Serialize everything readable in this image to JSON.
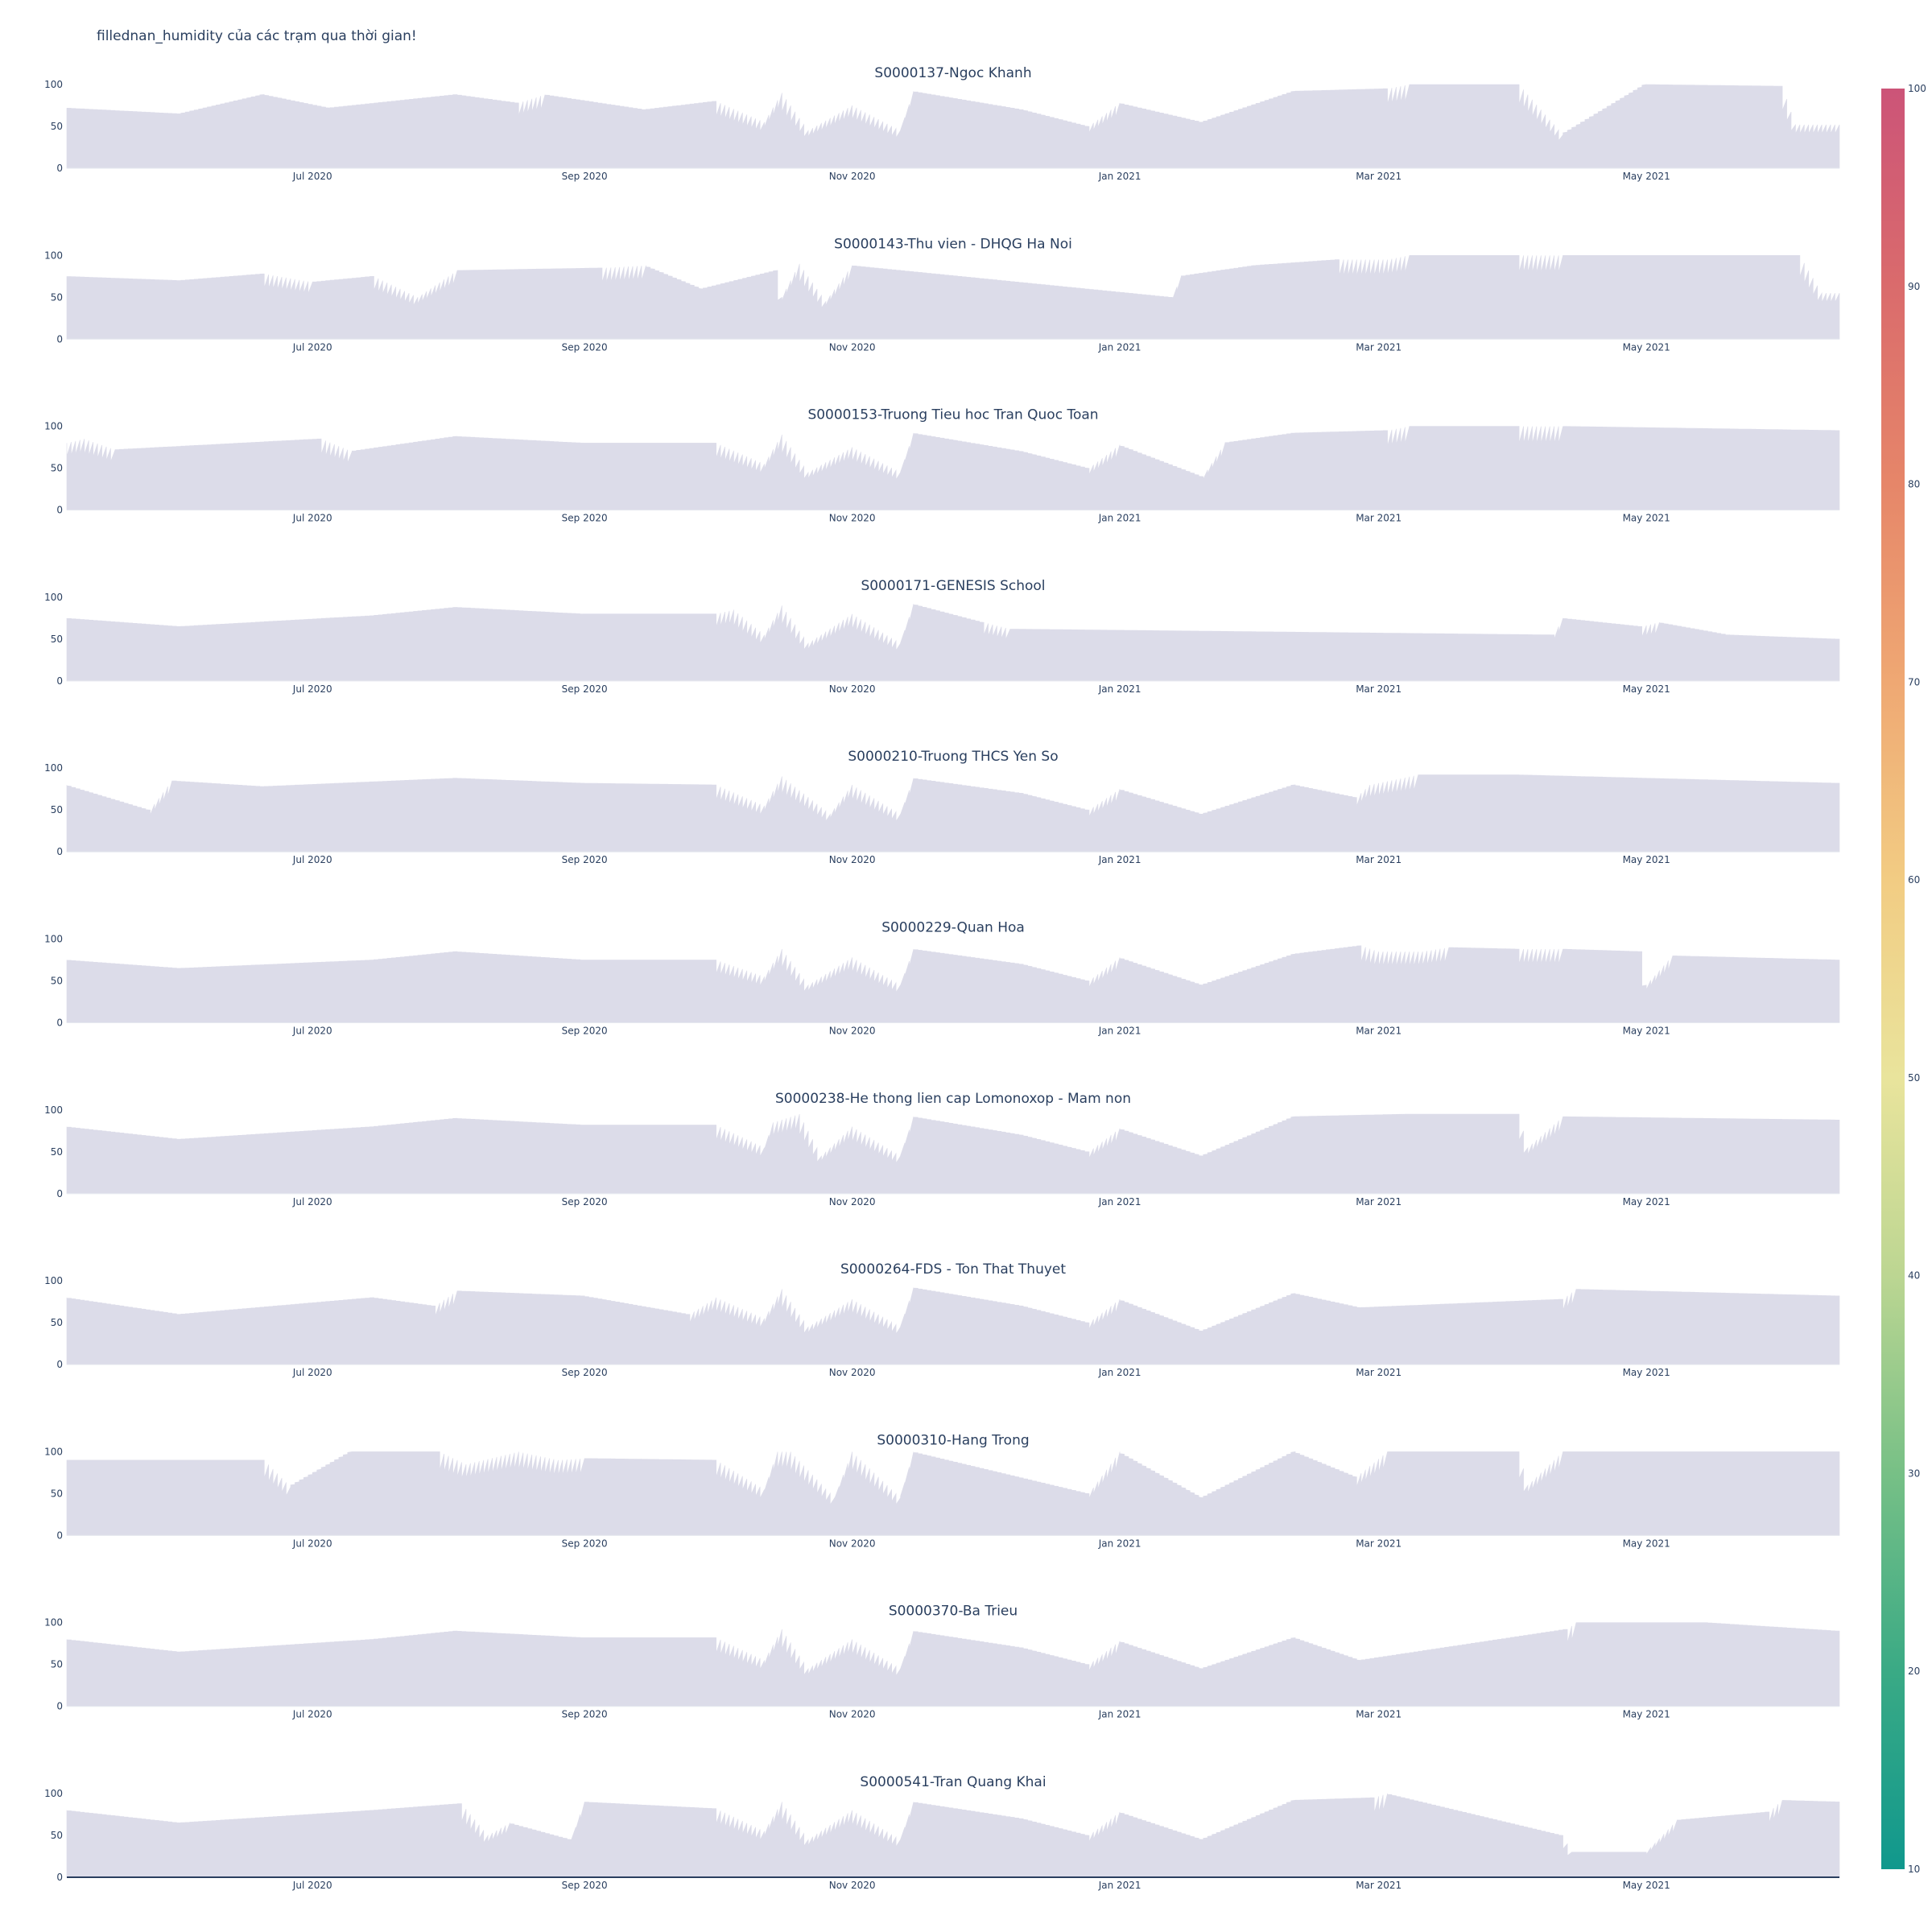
{
  "chart_data": {
    "type": "area",
    "title": "fillednan_humidity của các trạm qua thời gian!",
    "x_range": [
      "2020-05-06",
      "2021-06-14"
    ],
    "x_ticks": [
      "Jul 2020",
      "Sep 2020",
      "Nov 2020",
      "Jan 2021",
      "Mar 2021",
      "May 2021"
    ],
    "x_tick_dates": [
      "2020-07-01",
      "2020-09-01",
      "2020-11-01",
      "2021-01-01",
      "2021-03-01",
      "2021-05-01"
    ],
    "y_ticks": [
      0,
      50,
      100
    ],
    "ylim": [
      0,
      100
    ],
    "grid": false,
    "colorbar": {
      "min": 10,
      "max": 100,
      "ticks": [
        100,
        90,
        80,
        70,
        60,
        50,
        40,
        30,
        20,
        10
      ],
      "colors": [
        "#10988d",
        "#3aaa85",
        "#77c086",
        "#bcd692",
        "#e9e49c",
        "#f2cc83",
        "#efa873",
        "#e68669",
        "#da6b6c",
        "#cc5478"
      ]
    },
    "fill_color": "#dcdce9",
    "series": [
      {
        "name": "S0000137-Ngoc Khanh",
        "x": [
          "2020-05-06",
          "2020-06-01",
          "2020-06-20",
          "2020-07-05",
          "2020-08-03",
          "2020-08-17",
          "2020-08-23",
          "2020-09-15",
          "2020-10-01",
          "2020-10-12",
          "2020-10-16",
          "2020-10-22",
          "2020-11-01",
          "2020-11-12",
          "2020-11-15",
          "2020-12-10",
          "2020-12-25",
          "2021-01-01",
          "2021-01-20",
          "2021-02-10",
          "2021-03-03",
          "2021-03-08",
          "2021-04-02",
          "2021-04-12",
          "2021-05-01",
          "2021-06-01",
          "2021-06-04",
          "2021-06-14"
        ],
        "values": [
          72,
          65,
          88,
          72,
          88,
          78,
          88,
          70,
          80,
          55,
          90,
          45,
          75,
          45,
          92,
          70,
          50,
          78,
          55,
          92,
          95,
          100,
          100,
          40,
          100,
          98,
          52,
          52
        ]
      },
      {
        "name": "S0000143-Thu vien - DHQG Ha Noi",
        "x": [
          "2020-05-06",
          "2020-06-01",
          "2020-06-20",
          "2020-07-01",
          "2020-07-15",
          "2020-07-25",
          "2020-08-03",
          "2020-09-05",
          "2020-09-15",
          "2020-09-28",
          "2020-10-15",
          "2020-10-16",
          "2020-10-20",
          "2020-10-26",
          "2020-11-01",
          "2021-01-13",
          "2021-01-15",
          "2021-02-01",
          "2021-02-20",
          "2021-03-03",
          "2021-03-08",
          "2021-04-02",
          "2021-04-12",
          "2021-06-05",
          "2021-06-10",
          "2021-06-14"
        ],
        "values": [
          75,
          70,
          78,
          68,
          75,
          50,
          82,
          85,
          88,
          60,
          82,
          50,
          90,
          45,
          88,
          50,
          75,
          88,
          95,
          95,
          100,
          100,
          100,
          100,
          55,
          55
        ]
      },
      {
        "name": "S0000153-Truong Tieu hoc Tran Quoc Toan",
        "x": [
          "2020-05-06",
          "2020-05-10",
          "2020-05-17",
          "2020-07-03",
          "2020-07-10",
          "2020-08-03",
          "2020-09-01",
          "2020-10-01",
          "2020-10-12",
          "2020-10-16",
          "2020-10-22",
          "2020-11-01",
          "2020-11-12",
          "2020-11-15",
          "2020-12-10",
          "2020-12-25",
          "2021-01-01",
          "2021-01-20",
          "2021-01-25",
          "2021-02-10",
          "2021-03-03",
          "2021-03-08",
          "2021-04-02",
          "2021-04-12",
          "2021-06-14"
        ],
        "values": [
          80,
          85,
          72,
          85,
          70,
          88,
          80,
          80,
          55,
          90,
          45,
          75,
          45,
          92,
          70,
          50,
          78,
          40,
          80,
          92,
          95,
          100,
          100,
          100,
          95
        ]
      },
      {
        "name": "S0000171-GENESIS School",
        "x": [
          "2020-05-06",
          "2020-06-01",
          "2020-07-15",
          "2020-08-03",
          "2020-09-01",
          "2020-10-01",
          "2020-10-05",
          "2020-10-12",
          "2020-10-16",
          "2020-10-22",
          "2020-11-01",
          "2020-11-12",
          "2020-11-15",
          "2020-12-01",
          "2020-12-07",
          "2021-04-10",
          "2021-04-12",
          "2021-04-30",
          "2021-05-04",
          "2021-05-20",
          "2021-06-14"
        ],
        "values": [
          75,
          65,
          78,
          88,
          80,
          80,
          85,
          55,
          90,
          45,
          80,
          45,
          92,
          70,
          62,
          55,
          75,
          65,
          70,
          55,
          50
        ]
      },
      {
        "name": "S0000210-Truong THCS Yen So",
        "x": [
          "2020-05-06",
          "2020-05-25",
          "2020-05-30",
          "2020-06-20",
          "2020-08-03",
          "2020-09-01",
          "2020-10-01",
          "2020-10-12",
          "2020-10-16",
          "2020-10-27",
          "2020-11-01",
          "2020-11-12",
          "2020-11-15",
          "2020-12-10",
          "2020-12-25",
          "2021-01-01",
          "2021-01-20",
          "2021-02-10",
          "2021-02-24",
          "2021-02-27",
          "2021-03-10",
          "2021-04-02",
          "2021-06-14"
        ],
        "values": [
          80,
          50,
          85,
          78,
          88,
          82,
          80,
          55,
          90,
          45,
          80,
          45,
          88,
          70,
          50,
          75,
          45,
          80,
          65,
          80,
          92,
          92,
          82
        ]
      },
      {
        "name": "S0000229-Quan Hoa",
        "x": [
          "2020-05-06",
          "2020-06-01",
          "2020-07-15",
          "2020-08-03",
          "2020-09-01",
          "2020-10-01",
          "2020-10-12",
          "2020-10-16",
          "2020-10-22",
          "2020-11-01",
          "2020-11-12",
          "2020-11-15",
          "2020-12-10",
          "2020-12-25",
          "2021-01-01",
          "2021-01-20",
          "2021-02-10",
          "2021-02-25",
          "2021-03-01",
          "2021-03-11",
          "2021-03-17",
          "2021-04-02",
          "2021-04-12",
          "2021-04-30",
          "2021-05-01",
          "2021-05-07",
          "2021-06-14"
        ],
        "values": [
          75,
          65,
          75,
          85,
          75,
          75,
          55,
          88,
          45,
          78,
          45,
          88,
          70,
          50,
          78,
          45,
          82,
          92,
          85,
          85,
          90,
          88,
          88,
          85,
          45,
          80,
          75
        ]
      },
      {
        "name": "S0000238-He thong lien cap Lomonoxop - Mam non",
        "x": [
          "2020-05-06",
          "2020-06-01",
          "2020-07-15",
          "2020-08-03",
          "2020-09-01",
          "2020-10-01",
          "2020-10-12",
          "2020-10-14",
          "2020-10-20",
          "2020-10-25",
          "2020-11-01",
          "2020-11-12",
          "2020-11-15",
          "2020-12-10",
          "2020-12-25",
          "2021-01-01",
          "2021-01-20",
          "2021-02-10",
          "2021-03-08",
          "2021-04-02",
          "2021-04-04",
          "2021-04-12",
          "2021-06-14"
        ],
        "values": [
          80,
          65,
          80,
          90,
          82,
          82,
          55,
          85,
          95,
          45,
          80,
          45,
          92,
          70,
          50,
          78,
          45,
          92,
          95,
          95,
          55,
          92,
          88
        ]
      },
      {
        "name": "S0000264-FDS - Ton That Thuyet",
        "x": [
          "2020-05-06",
          "2020-06-01",
          "2020-07-15",
          "2020-07-29",
          "2020-08-03",
          "2020-09-01",
          "2020-09-25",
          "2020-10-01",
          "2020-10-12",
          "2020-10-16",
          "2020-10-22",
          "2020-11-01",
          "2020-11-12",
          "2020-11-15",
          "2020-12-10",
          "2020-12-25",
          "2021-01-01",
          "2021-01-20",
          "2021-02-10",
          "2021-02-25",
          "2021-04-12",
          "2021-04-15",
          "2021-06-14"
        ],
        "values": [
          80,
          60,
          80,
          70,
          88,
          82,
          60,
          80,
          55,
          90,
          45,
          78,
          45,
          92,
          70,
          50,
          78,
          40,
          85,
          68,
          78,
          90,
          82
        ]
      },
      {
        "name": "S0000310-Hang Trong",
        "x": [
          "2020-05-06",
          "2020-06-20",
          "2020-06-26",
          "2020-07-10",
          "2020-07-30",
          "2020-08-05",
          "2020-08-17",
          "2020-08-26",
          "2020-09-01",
          "2020-10-01",
          "2020-10-12",
          "2020-10-15",
          "2020-10-18",
          "2020-10-28",
          "2020-11-01",
          "2020-11-12",
          "2020-11-15",
          "2020-12-25",
          "2021-01-01",
          "2021-01-20",
          "2021-02-10",
          "2021-02-24",
          "2021-03-03",
          "2021-04-02",
          "2021-04-04",
          "2021-04-12",
          "2021-06-14"
        ],
        "values": [
          90,
          90,
          58,
          100,
          100,
          85,
          100,
          90,
          92,
          90,
          55,
          100,
          100,
          45,
          100,
          45,
          100,
          50,
          100,
          45,
          100,
          70,
          100,
          100,
          60,
          100,
          100
        ]
      },
      {
        "name": "S0000370-Ba Trieu",
        "x": [
          "2020-05-06",
          "2020-06-01",
          "2020-07-15",
          "2020-08-03",
          "2020-09-01",
          "2020-10-01",
          "2020-10-12",
          "2020-10-16",
          "2020-10-22",
          "2020-11-01",
          "2020-11-12",
          "2020-11-15",
          "2020-12-10",
          "2020-12-25",
          "2021-01-01",
          "2021-01-20",
          "2021-02-10",
          "2021-02-25",
          "2021-04-13",
          "2021-04-15",
          "2021-05-15",
          "2021-06-14"
        ],
        "values": [
          80,
          65,
          80,
          90,
          82,
          82,
          55,
          92,
          45,
          80,
          45,
          90,
          70,
          50,
          78,
          45,
          82,
          55,
          92,
          100,
          100,
          90
        ]
      },
      {
        "name": "S0000541-Tran Quang Khai",
        "x": [
          "2020-05-06",
          "2020-06-01",
          "2020-07-15",
          "2020-08-04",
          "2020-08-10",
          "2020-08-15",
          "2020-08-29",
          "2020-09-01",
          "2020-10-01",
          "2020-10-12",
          "2020-10-16",
          "2020-10-22",
          "2020-11-01",
          "2020-11-12",
          "2020-11-15",
          "2020-12-10",
          "2020-12-25",
          "2021-01-01",
          "2021-01-20",
          "2021-02-10",
          "2021-02-28",
          "2021-03-03",
          "2021-04-12",
          "2021-04-14",
          "2021-05-01",
          "2021-05-08",
          "2021-05-29",
          "2021-06-01",
          "2021-06-14"
        ],
        "values": [
          80,
          65,
          80,
          88,
          50,
          65,
          45,
          90,
          82,
          55,
          90,
          45,
          80,
          45,
          90,
          70,
          50,
          78,
          45,
          92,
          95,
          100,
          50,
          30,
          30,
          68,
          78,
          92,
          90
        ]
      }
    ]
  }
}
